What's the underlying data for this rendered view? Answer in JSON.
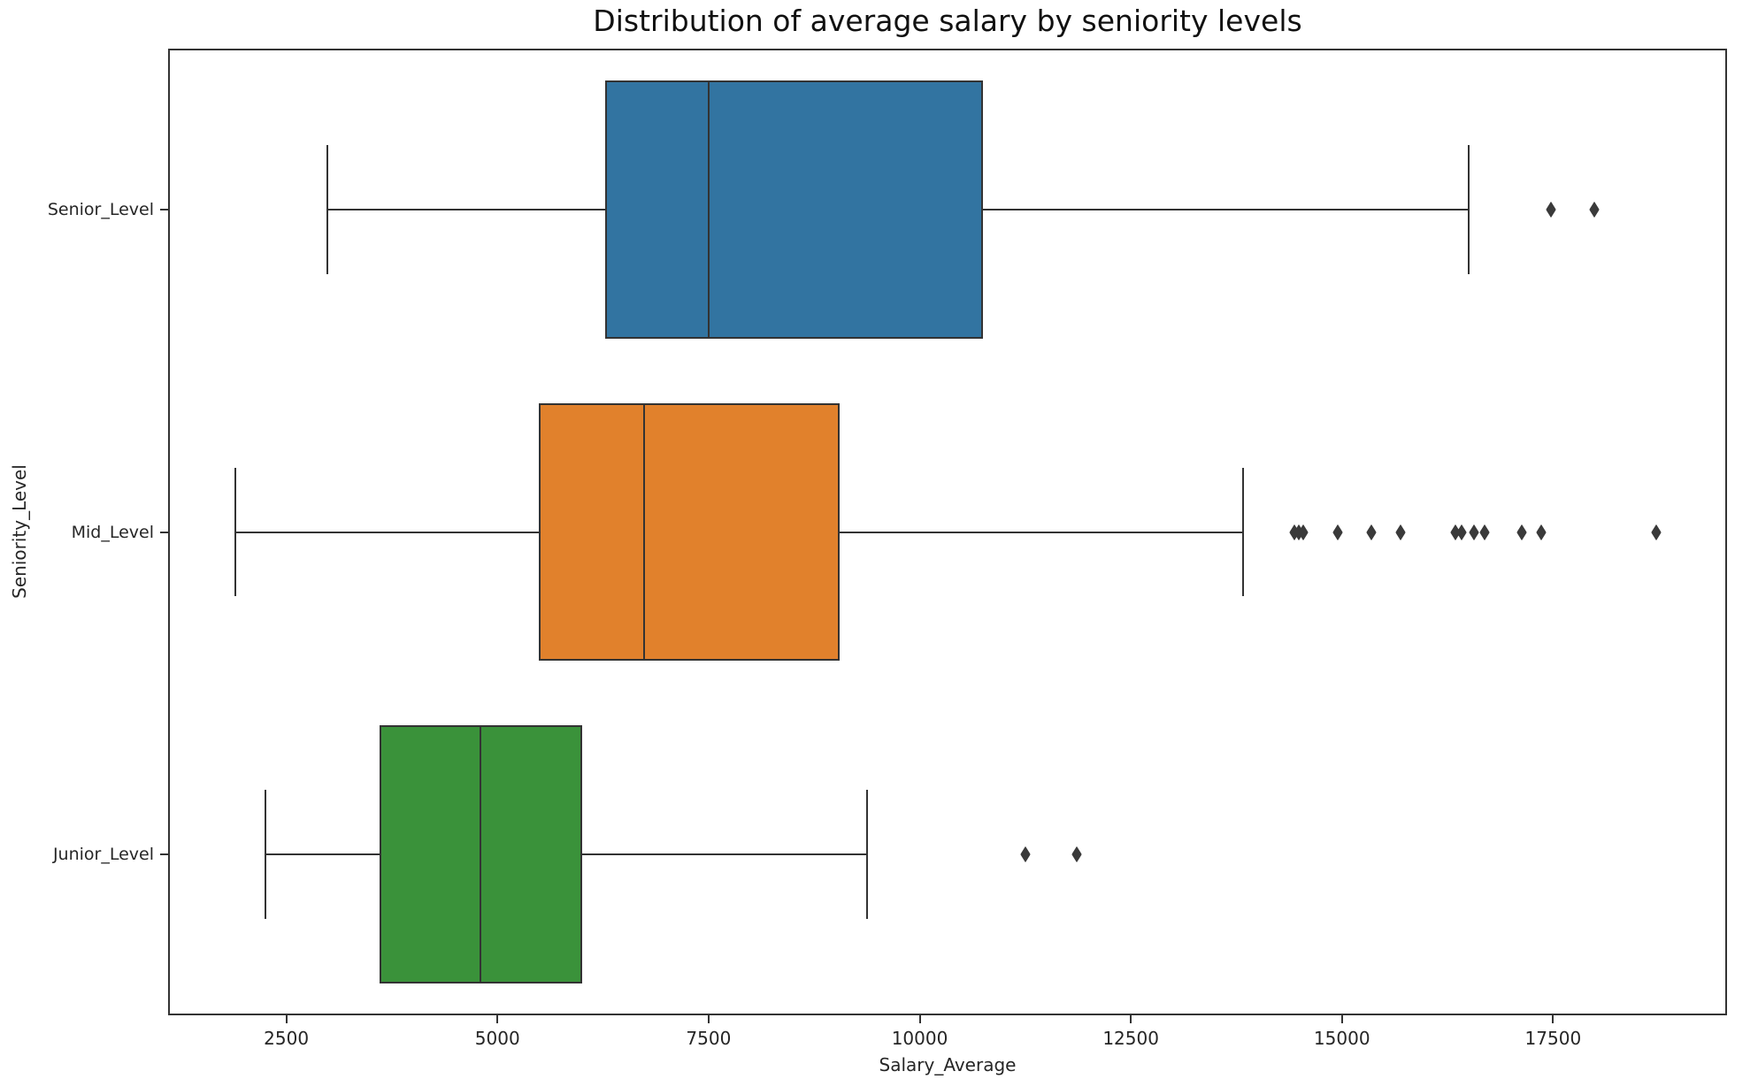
{
  "title": "Distribution of average salary by seniority levels",
  "chart_data": {
    "type": "boxplot",
    "orientation": "horizontal",
    "title": "Distribution of average salary by seniority levels",
    "xlabel": "Salary_Average",
    "ylabel": "Seniority_Level",
    "xlim": [
      1100,
      19560
    ],
    "x_ticks": [
      2500,
      5000,
      7500,
      10000,
      12500,
      15000,
      17500
    ],
    "grid": false,
    "categories": [
      "Senior_Level",
      "Mid_Level",
      "Junior_Level"
    ],
    "series": [
      {
        "name": "Senior_Level",
        "color": "#3274a1",
        "whisker_low": 2990,
        "q1": 6280,
        "median": 7500,
        "q3": 10750,
        "whisker_high": 16500,
        "outliers": [
          17480,
          17990
        ]
      },
      {
        "name": "Mid_Level",
        "color": "#e1812c",
        "whisker_low": 1900,
        "q1": 5490,
        "median": 6740,
        "q3": 9050,
        "whisker_high": 13830,
        "outliers": [
          14440,
          14490,
          14540,
          14950,
          15350,
          15690,
          16340,
          16420,
          16560,
          16690,
          17130,
          17360,
          18720
        ]
      },
      {
        "name": "Junior_Level",
        "color": "#3a923a",
        "whisker_low": 2250,
        "q1": 3600,
        "median": 4800,
        "q3": 6000,
        "whisker_high": 9380,
        "outliers": [
          11250,
          11860
        ]
      }
    ],
    "line_color": "#333333",
    "flier_color": "#3a3a3a"
  }
}
